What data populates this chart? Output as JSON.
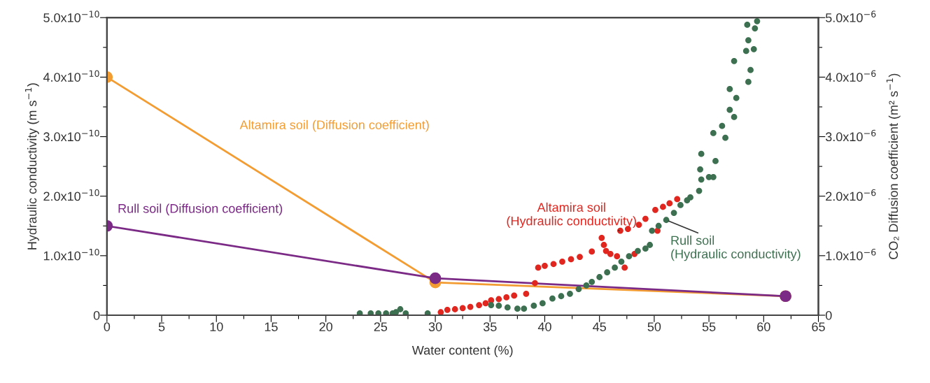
{
  "chart_data": {
    "type": "scatter",
    "xlabel": "Water content (%)",
    "ylabel": "Hydraulic conductivity (m s$^{−1}$)",
    "y2label": "CO₂ Diffusion coefficient (m² s$^{−1}$)",
    "xlim": [
      0,
      65
    ],
    "xticks": [
      0,
      {
        "value": 2.5,
        "label": null
      },
      5,
      {
        "value": 7.5,
        "label": null
      },
      10,
      {
        "value": 12.5,
        "label": null
      },
      15,
      {
        "value": 17.5,
        "label": null
      },
      20,
      {
        "value": 22.5,
        "label": null
      },
      25,
      {
        "value": 27.5,
        "label": null
      },
      30,
      {
        "value": 32.5,
        "label": null
      },
      35,
      {
        "value": 37.5,
        "label": null
      },
      40,
      {
        "value": 42.5,
        "label": null
      },
      45,
      {
        "value": 47.5,
        "label": null
      },
      50,
      {
        "value": 52.5,
        "label": null
      },
      55,
      {
        "value": 57.5,
        "label": null
      },
      60,
      {
        "value": 62.5,
        "label": null
      },
      65
    ],
    "ylim": [
      0,
      5e-10
    ],
    "yticks": [
      {
        "value": 0,
        "label": "0"
      },
      {
        "value": 5e-11,
        "label": null
      },
      {
        "value": 1e-10,
        "label": "1.0x10$^{−10}$"
      },
      {
        "value": 1.5e-10,
        "label": null
      },
      {
        "value": 2e-10,
        "label": "2.0x10$^{−10}$"
      },
      {
        "value": 2.5e-10,
        "label": null
      },
      {
        "value": 3e-10,
        "label": "3.0x10$^{−10}$"
      },
      {
        "value": 3.5e-10,
        "label": null
      },
      {
        "value": 4e-10,
        "label": "4.0x10$^{−10}$"
      },
      {
        "value": 4.5e-10,
        "label": null
      },
      {
        "value": 5e-10,
        "label": "5.0x10$^{−10}$"
      }
    ],
    "y2lim": [
      0,
      5e-06
    ],
    "y2ticks": [
      {
        "value": 0,
        "label": "0"
      },
      {
        "value": 5e-07,
        "label": null
      },
      {
        "value": 1e-06,
        "label": "1.0x10$^{−6}$"
      },
      {
        "value": 1.5e-06,
        "label": null
      },
      {
        "value": 2e-06,
        "label": "2.0x10$^{−6}$"
      },
      {
        "value": 2.5e-06,
        "label": null
      },
      {
        "value": 3e-06,
        "label": "3.0x10$^{−6}$"
      },
      {
        "value": 3.5e-06,
        "label": null
      },
      {
        "value": 4e-06,
        "label": "4.0x10$^{−6}$"
      },
      {
        "value": 4.5e-06,
        "label": null
      },
      {
        "value": 5e-06,
        "label": "5.0x10$^{−6}$"
      }
    ],
    "grid": false,
    "legend": false,
    "marker": "circle",
    "series": [
      {
        "name": "Altamira soil (Diffusion coefficient)",
        "type": "line",
        "axis": "y2",
        "color": "#f39c32",
        "x": [
          0,
          30,
          62
        ],
        "values": [
          4e-06,
          5.5e-07,
          3.2e-07
        ]
      },
      {
        "name": "Rull soil (Diffusion coefficient)",
        "type": "line",
        "axis": "y2",
        "color": "#7b2a86",
        "x": [
          0,
          30,
          62
        ],
        "values": [
          1.5e-06,
          6.2e-07,
          3.2e-07
        ]
      },
      {
        "name": "Altamira soil\n(Hydraulic conductivity)",
        "color": "#e0261f",
        "x": [
          30.5,
          31.1,
          31.8,
          32.5,
          33.2,
          34.0,
          34.6,
          35.1,
          35.8,
          36.5,
          37.2,
          38.3,
          39.1,
          39.4,
          40.0,
          40.8,
          41.6,
          42.4,
          43.2,
          44.3,
          45.2,
          45.4,
          45.6,
          46.0,
          46.6,
          46.9,
          47.3,
          47.6,
          48.2,
          48.6,
          49.2,
          50.1,
          50.3,
          50.8,
          51.4,
          52.1
        ],
        "values": [
          5e-12,
          9e-12,
          1e-11,
          1.2e-11,
          1.4e-11,
          1.7e-11,
          2e-11,
          2.5e-11,
          2.7e-11,
          3e-11,
          3.3e-11,
          3.6e-11,
          5.4e-11,
          8e-11,
          8.3e-11,
          8.6e-11,
          9e-11,
          9.4e-11,
          9.8e-11,
          1.07e-10,
          1.3e-10,
          1.18e-10,
          1.08e-10,
          1.03e-10,
          9.9e-11,
          1.42e-10,
          8e-11,
          1.45e-10,
          1.03e-10,
          1.52e-10,
          1.62e-10,
          1.77e-10,
          1.42e-10,
          1.82e-10,
          1.88e-10,
          1.95e-10
        ]
      },
      {
        "name": "Rull soil\n(Hydraulic conductivity)",
        "color": "#3d7050",
        "x": [
          23.1,
          24.1,
          24.8,
          25.5,
          26.1,
          26.4,
          26.8,
          27.3,
          29.3,
          35.1,
          35.8,
          36.6,
          37.5,
          38.1,
          39.0,
          39.8,
          40.7,
          41.5,
          42.3,
          43.1,
          43.8,
          44.3,
          45.0,
          45.7,
          46.4,
          47.0,
          47.7,
          48.5,
          49.2,
          49.6,
          49.8,
          50.4,
          51.1,
          51.8,
          52.4,
          53.0,
          53.3,
          54.1,
          54.2,
          54.3,
          54.3,
          55.0,
          55.4,
          55.4,
          55.6,
          56.2,
          56.5,
          56.9,
          56.9,
          57.3,
          57.3,
          57.5,
          58.4,
          58.5,
          58.6,
          58.6,
          58.8,
          59.1,
          59.2,
          59.4
        ],
        "values": [
          3e-12,
          3e-12,
          3e-12,
          3e-12,
          3e-12,
          5e-12,
          1e-11,
          3e-12,
          3e-12,
          1.7e-11,
          1.6e-11,
          1.3e-11,
          1.1e-11,
          1.1e-11,
          1.6e-11,
          2e-11,
          2.8e-11,
          3.2e-11,
          3.6e-11,
          4.4e-11,
          5e-11,
          5.6e-11,
          6.4e-11,
          7.2e-11,
          8e-11,
          9e-11,
          9.9e-11,
          1.08e-10,
          1.12e-10,
          1.18e-10,
          1.42e-10,
          1.5e-10,
          1.6e-10,
          1.72e-10,
          1.85e-10,
          1.93e-10,
          1.98e-10,
          2.09e-10,
          2.45e-10,
          2.28e-10,
          2.71e-10,
          2.32e-10,
          2.32e-10,
          3.06e-10,
          2.59e-10,
          3.18e-10,
          2.98e-10,
          3.45e-10,
          3.8e-10,
          3.33e-10,
          4.27e-10,
          3.65e-10,
          4.44e-10,
          4.88e-10,
          3.92e-10,
          4.62e-10,
          4.12e-10,
          4.47e-10,
          4.82e-10,
          4.94e-10
        ]
      }
    ]
  }
}
